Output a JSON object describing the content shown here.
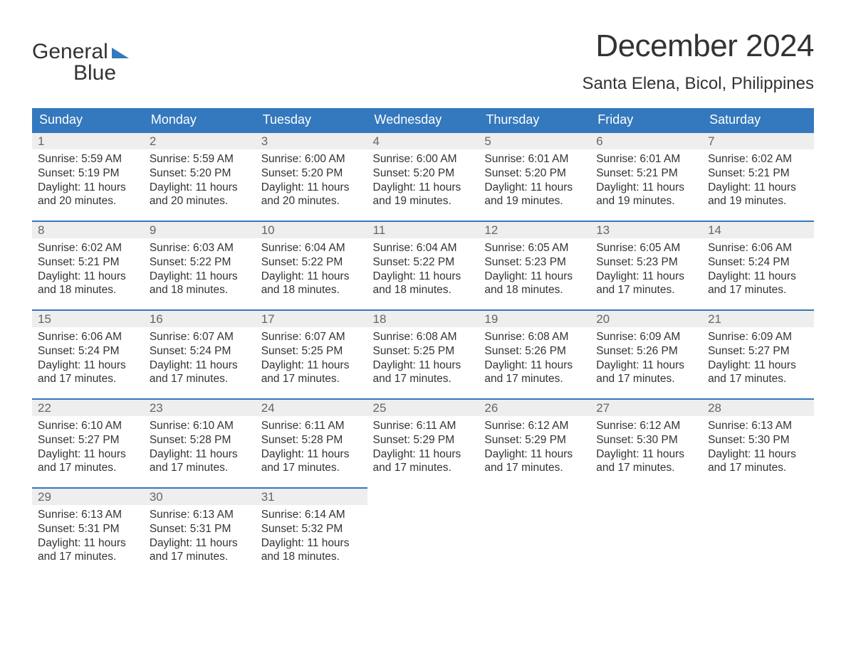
{
  "logo": {
    "line1_a": "General",
    "line2_a": "Blue"
  },
  "title": "December 2024",
  "location": "Santa Elena, Bicol, Philippines",
  "daynames": [
    "Sunday",
    "Monday",
    "Tuesday",
    "Wednesday",
    "Thursday",
    "Friday",
    "Saturday"
  ],
  "colors": {
    "header_bg": "#3478bd",
    "header_text": "#ffffff",
    "daynum_bg": "#eeeeee",
    "daynum_border": "#3478bd",
    "text": "#333333",
    "page_bg": "#ffffff"
  },
  "typography": {
    "title_fontsize": 44,
    "location_fontsize": 24,
    "dayhead_fontsize": 18,
    "body_fontsize": 15.5
  },
  "layout": {
    "columns": 7,
    "rows": 5
  },
  "days": [
    {
      "n": "1",
      "sr": "Sunrise: 5:59 AM",
      "ss": "Sunset: 5:19 PM",
      "d1": "Daylight: 11 hours",
      "d2": "and 20 minutes."
    },
    {
      "n": "2",
      "sr": "Sunrise: 5:59 AM",
      "ss": "Sunset: 5:20 PM",
      "d1": "Daylight: 11 hours",
      "d2": "and 20 minutes."
    },
    {
      "n": "3",
      "sr": "Sunrise: 6:00 AM",
      "ss": "Sunset: 5:20 PM",
      "d1": "Daylight: 11 hours",
      "d2": "and 20 minutes."
    },
    {
      "n": "4",
      "sr": "Sunrise: 6:00 AM",
      "ss": "Sunset: 5:20 PM",
      "d1": "Daylight: 11 hours",
      "d2": "and 19 minutes."
    },
    {
      "n": "5",
      "sr": "Sunrise: 6:01 AM",
      "ss": "Sunset: 5:20 PM",
      "d1": "Daylight: 11 hours",
      "d2": "and 19 minutes."
    },
    {
      "n": "6",
      "sr": "Sunrise: 6:01 AM",
      "ss": "Sunset: 5:21 PM",
      "d1": "Daylight: 11 hours",
      "d2": "and 19 minutes."
    },
    {
      "n": "7",
      "sr": "Sunrise: 6:02 AM",
      "ss": "Sunset: 5:21 PM",
      "d1": "Daylight: 11 hours",
      "d2": "and 19 minutes."
    },
    {
      "n": "8",
      "sr": "Sunrise: 6:02 AM",
      "ss": "Sunset: 5:21 PM",
      "d1": "Daylight: 11 hours",
      "d2": "and 18 minutes."
    },
    {
      "n": "9",
      "sr": "Sunrise: 6:03 AM",
      "ss": "Sunset: 5:22 PM",
      "d1": "Daylight: 11 hours",
      "d2": "and 18 minutes."
    },
    {
      "n": "10",
      "sr": "Sunrise: 6:04 AM",
      "ss": "Sunset: 5:22 PM",
      "d1": "Daylight: 11 hours",
      "d2": "and 18 minutes."
    },
    {
      "n": "11",
      "sr": "Sunrise: 6:04 AM",
      "ss": "Sunset: 5:22 PM",
      "d1": "Daylight: 11 hours",
      "d2": "and 18 minutes."
    },
    {
      "n": "12",
      "sr": "Sunrise: 6:05 AM",
      "ss": "Sunset: 5:23 PM",
      "d1": "Daylight: 11 hours",
      "d2": "and 18 minutes."
    },
    {
      "n": "13",
      "sr": "Sunrise: 6:05 AM",
      "ss": "Sunset: 5:23 PM",
      "d1": "Daylight: 11 hours",
      "d2": "and 17 minutes."
    },
    {
      "n": "14",
      "sr": "Sunrise: 6:06 AM",
      "ss": "Sunset: 5:24 PM",
      "d1": "Daylight: 11 hours",
      "d2": "and 17 minutes."
    },
    {
      "n": "15",
      "sr": "Sunrise: 6:06 AM",
      "ss": "Sunset: 5:24 PM",
      "d1": "Daylight: 11 hours",
      "d2": "and 17 minutes."
    },
    {
      "n": "16",
      "sr": "Sunrise: 6:07 AM",
      "ss": "Sunset: 5:24 PM",
      "d1": "Daylight: 11 hours",
      "d2": "and 17 minutes."
    },
    {
      "n": "17",
      "sr": "Sunrise: 6:07 AM",
      "ss": "Sunset: 5:25 PM",
      "d1": "Daylight: 11 hours",
      "d2": "and 17 minutes."
    },
    {
      "n": "18",
      "sr": "Sunrise: 6:08 AM",
      "ss": "Sunset: 5:25 PM",
      "d1": "Daylight: 11 hours",
      "d2": "and 17 minutes."
    },
    {
      "n": "19",
      "sr": "Sunrise: 6:08 AM",
      "ss": "Sunset: 5:26 PM",
      "d1": "Daylight: 11 hours",
      "d2": "and 17 minutes."
    },
    {
      "n": "20",
      "sr": "Sunrise: 6:09 AM",
      "ss": "Sunset: 5:26 PM",
      "d1": "Daylight: 11 hours",
      "d2": "and 17 minutes."
    },
    {
      "n": "21",
      "sr": "Sunrise: 6:09 AM",
      "ss": "Sunset: 5:27 PM",
      "d1": "Daylight: 11 hours",
      "d2": "and 17 minutes."
    },
    {
      "n": "22",
      "sr": "Sunrise: 6:10 AM",
      "ss": "Sunset: 5:27 PM",
      "d1": "Daylight: 11 hours",
      "d2": "and 17 minutes."
    },
    {
      "n": "23",
      "sr": "Sunrise: 6:10 AM",
      "ss": "Sunset: 5:28 PM",
      "d1": "Daylight: 11 hours",
      "d2": "and 17 minutes."
    },
    {
      "n": "24",
      "sr": "Sunrise: 6:11 AM",
      "ss": "Sunset: 5:28 PM",
      "d1": "Daylight: 11 hours",
      "d2": "and 17 minutes."
    },
    {
      "n": "25",
      "sr": "Sunrise: 6:11 AM",
      "ss": "Sunset: 5:29 PM",
      "d1": "Daylight: 11 hours",
      "d2": "and 17 minutes."
    },
    {
      "n": "26",
      "sr": "Sunrise: 6:12 AM",
      "ss": "Sunset: 5:29 PM",
      "d1": "Daylight: 11 hours",
      "d2": "and 17 minutes."
    },
    {
      "n": "27",
      "sr": "Sunrise: 6:12 AM",
      "ss": "Sunset: 5:30 PM",
      "d1": "Daylight: 11 hours",
      "d2": "and 17 minutes."
    },
    {
      "n": "28",
      "sr": "Sunrise: 6:13 AM",
      "ss": "Sunset: 5:30 PM",
      "d1": "Daylight: 11 hours",
      "d2": "and 17 minutes."
    },
    {
      "n": "29",
      "sr": "Sunrise: 6:13 AM",
      "ss": "Sunset: 5:31 PM",
      "d1": "Daylight: 11 hours",
      "d2": "and 17 minutes."
    },
    {
      "n": "30",
      "sr": "Sunrise: 6:13 AM",
      "ss": "Sunset: 5:31 PM",
      "d1": "Daylight: 11 hours",
      "d2": "and 17 minutes."
    },
    {
      "n": "31",
      "sr": "Sunrise: 6:14 AM",
      "ss": "Sunset: 5:32 PM",
      "d1": "Daylight: 11 hours",
      "d2": "and 18 minutes."
    }
  ]
}
